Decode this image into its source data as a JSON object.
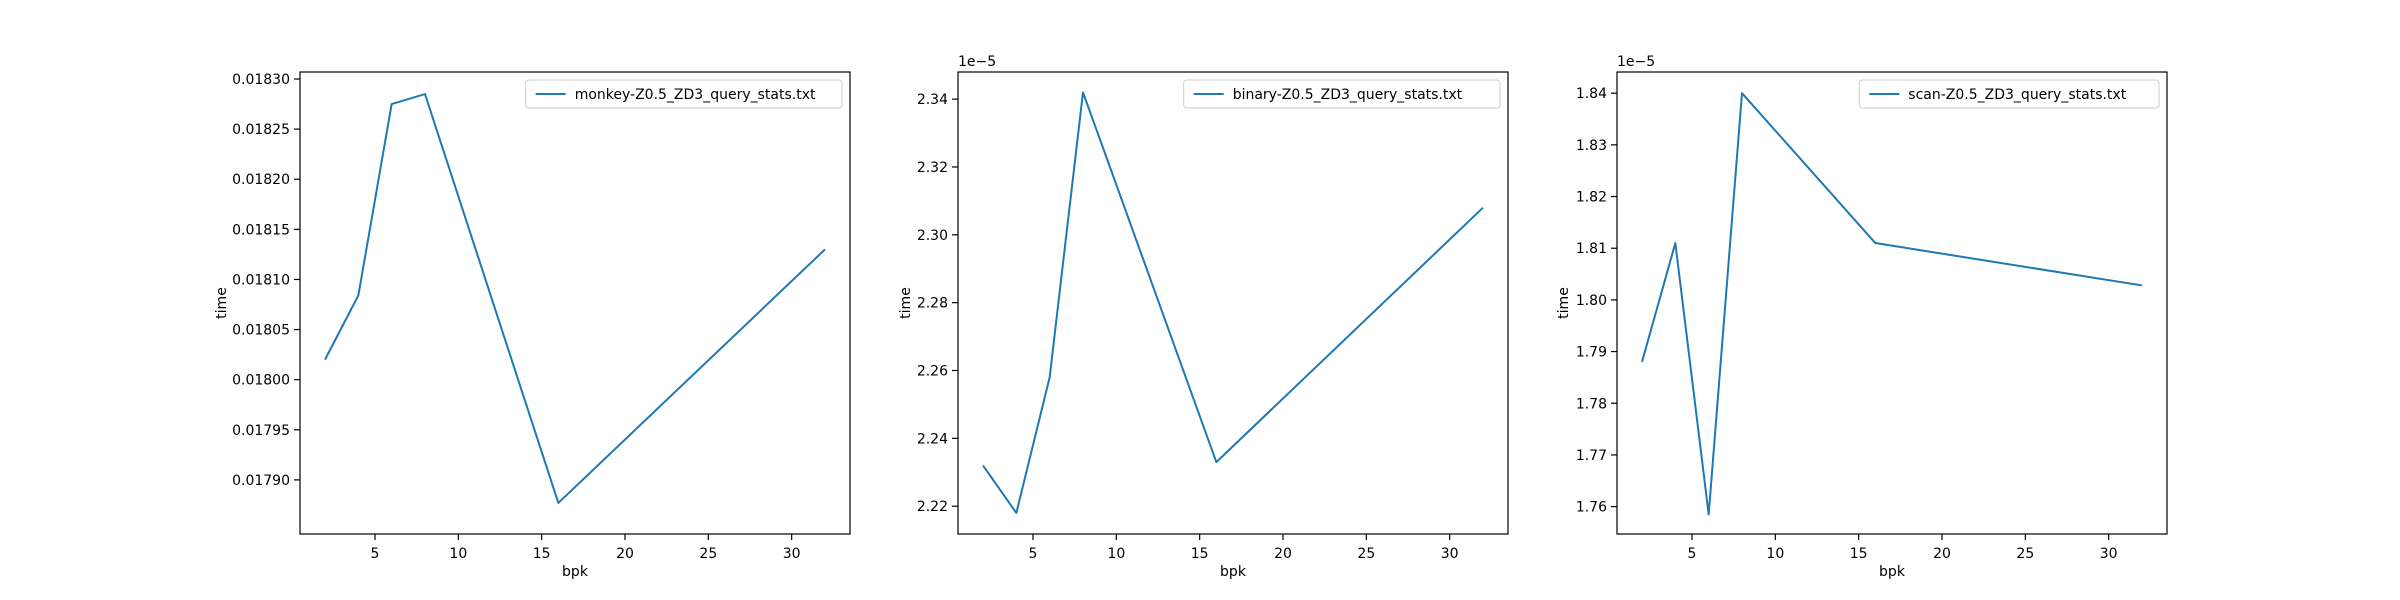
{
  "chart_data": [
    {
      "type": "line",
      "xlabel": "bpk",
      "ylabel": "time",
      "x": [
        2,
        4,
        6,
        8,
        16,
        32
      ],
      "series": [
        {
          "name": "monkey-Z0.5_ZD3_query_stats.txt",
          "values": [
            0.01802,
            0.018084,
            0.018275,
            0.018285,
            0.017877,
            0.01813
          ]
        }
      ],
      "xlim": [
        0.5,
        33.5
      ],
      "ylim": [
        0.017846,
        0.018307
      ],
      "x_ticks": [
        5,
        10,
        15,
        20,
        25,
        30
      ],
      "y_ticks": [
        0.0179,
        0.01795,
        0.018,
        0.01805,
        0.0181,
        0.01815,
        0.0182,
        0.01825,
        0.0183
      ],
      "y_tick_labels": [
        "0.01790",
        "0.01795",
        "0.01800",
        "0.01805",
        "0.01810",
        "0.01815",
        "0.01820",
        "0.01825",
        "0.01830"
      ],
      "offset_text": "",
      "legend_position": "upper right",
      "color": "#1f77b4",
      "grid": false
    },
    {
      "type": "line",
      "xlabel": "bpk",
      "ylabel": "time",
      "x": [
        2,
        4,
        6,
        8,
        16,
        32
      ],
      "series": [
        {
          "name": "binary-Z0.5_ZD3_query_stats.txt",
          "values": [
            2.232,
            2.218,
            2.258,
            2.342,
            2.233,
            2.308
          ]
        }
      ],
      "xlim": [
        0.5,
        33.5
      ],
      "ylim": [
        2.2118,
        2.348
      ],
      "x_ticks": [
        5,
        10,
        15,
        20,
        25,
        30
      ],
      "y_ticks": [
        2.22,
        2.24,
        2.26,
        2.28,
        2.3,
        2.32,
        2.34
      ],
      "y_tick_labels": [
        "2.22",
        "2.24",
        "2.26",
        "2.28",
        "2.30",
        "2.32",
        "2.34"
      ],
      "offset_text": "1e−5",
      "legend_position": "upper right",
      "color": "#1f77b4",
      "grid": false
    },
    {
      "type": "line",
      "xlabel": "bpk",
      "ylabel": "time",
      "x": [
        2,
        4,
        6,
        8,
        16,
        32
      ],
      "series": [
        {
          "name": "scan-Z0.5_ZD3_query_stats.txt",
          "values": [
            1.788,
            1.811,
            1.7585,
            1.84,
            1.811,
            1.8028
          ]
        }
      ],
      "xlim": [
        0.5,
        33.5
      ],
      "ylim": [
        1.7547,
        1.8441
      ],
      "x_ticks": [
        5,
        10,
        15,
        20,
        25,
        30
      ],
      "y_ticks": [
        1.76,
        1.77,
        1.78,
        1.79,
        1.8,
        1.81,
        1.82,
        1.83,
        1.84
      ],
      "y_tick_labels": [
        "1.76",
        "1.77",
        "1.78",
        "1.79",
        "1.80",
        "1.81",
        "1.82",
        "1.83",
        "1.84"
      ],
      "offset_text": "1e−5",
      "legend_position": "upper right",
      "color": "#1f77b4",
      "grid": false
    }
  ]
}
